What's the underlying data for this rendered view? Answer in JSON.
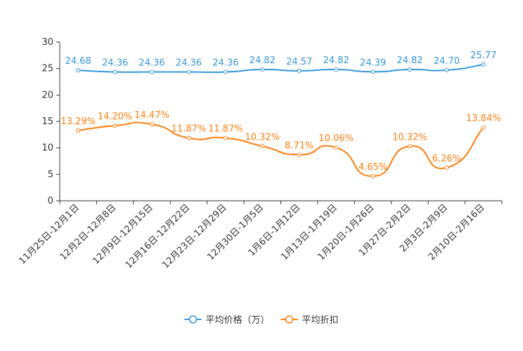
{
  "chart_data": {
    "type": "line",
    "title": "",
    "xlabel": "",
    "ylabel": "",
    "ylim": [
      0,
      30
    ],
    "yticks": [
      0,
      5,
      10,
      15,
      20,
      25,
      30
    ],
    "grid": false,
    "legend_position": "bottom-center",
    "categories": [
      "11月25日-12月1日",
      "12月2日-12月8日",
      "12月9日-12月15日",
      "12月16日-12月22日",
      "12月23日-12月29日",
      "12月30日-1月5日",
      "1月6日-1月12日",
      "1月13日-1月19日",
      "1月20日-1月26日",
      "1月27日-2月2日",
      "2月3日-2月9日",
      "2月10日-2月16日"
    ],
    "series": [
      {
        "name": "平均价格（万）",
        "color": "#3398DB",
        "values": [
          24.68,
          24.36,
          24.36,
          24.36,
          24.36,
          24.82,
          24.57,
          24.82,
          24.39,
          24.82,
          24.7,
          25.77
        ],
        "labels": [
          "24.68",
          "24.36",
          "24.36",
          "24.36",
          "24.36",
          "24.82",
          "24.57",
          "24.82",
          "24.39",
          "24.82",
          "24.70",
          "25.77"
        ]
      },
      {
        "name": "平均折扣",
        "color": "#FF7F0E",
        "values": [
          13.29,
          14.2,
          14.47,
          11.87,
          11.87,
          10.32,
          8.71,
          10.06,
          4.65,
          10.32,
          6.26,
          13.84
        ],
        "labels": [
          "13.29%",
          "14.20%",
          "14.47%",
          "11.87%",
          "11.87%",
          "10.32%",
          "8.71%",
          "10.06%",
          "4.65%",
          "10.32%",
          "6.26%",
          "13.84%"
        ]
      }
    ]
  }
}
